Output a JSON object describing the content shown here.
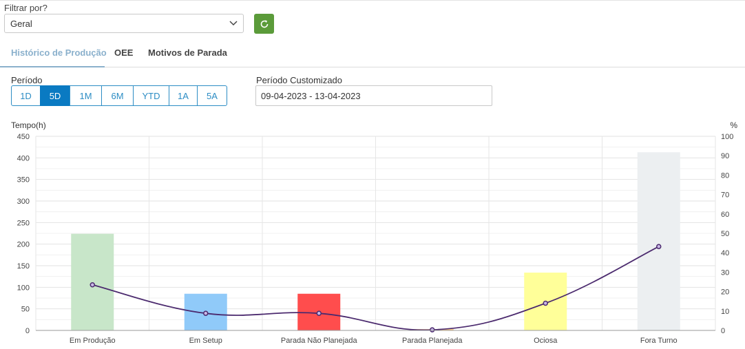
{
  "filter": {
    "label": "Filtrar por?",
    "selected": "Geral"
  },
  "tabs": [
    {
      "label": "Histórico de Produção",
      "active": true
    },
    {
      "label": "OEE",
      "active": false
    },
    {
      "label": "Motivos de Parada",
      "active": false
    }
  ],
  "period": {
    "label": "Período",
    "buttons": [
      "1D",
      "5D",
      "1M",
      "6M",
      "YTD",
      "1A",
      "5A"
    ],
    "selected": "5D"
  },
  "custom_period": {
    "label": "Período Customizado",
    "value": "09-04-2023 - 13-04-2023"
  },
  "colors": {
    "accent": "#0a7ac2",
    "refresh": "#5b9b3a",
    "tab_active": "#8ab0cc",
    "line": "#4b2a6e"
  },
  "icons": {
    "select": "chevron-down-icon",
    "refresh": "refresh-icon"
  },
  "chart_data": {
    "type": "bar",
    "ylabel": "Tempo(h)",
    "y2label": "%",
    "ylim": [
      0,
      450
    ],
    "y2lim": [
      0,
      100
    ],
    "yticks": [
      0,
      50,
      100,
      150,
      200,
      250,
      300,
      350,
      400,
      450
    ],
    "y2ticks": [
      0,
      10,
      20,
      30,
      40,
      50,
      60,
      70,
      80,
      90,
      100
    ],
    "grid": true,
    "categories": [
      "Em Produção",
      "Em Setup",
      "Parada Não Planejada",
      "Parada Planejada",
      "Ociosa",
      "Fora Turno"
    ],
    "series": [
      {
        "type": "bar",
        "values": [
          224,
          85,
          85,
          3,
          134,
          413
        ],
        "colors": [
          "#c8e6c9",
          "#90caf9",
          "#ff4d4d",
          "#ffcc80",
          "#ffff99",
          "#eceff1"
        ]
      },
      {
        "type": "line",
        "axis": "right",
        "values": [
          23.5,
          8.8,
          8.8,
          0.3,
          14.0,
          43.2
        ],
        "color": "#4b2a6e"
      }
    ]
  }
}
